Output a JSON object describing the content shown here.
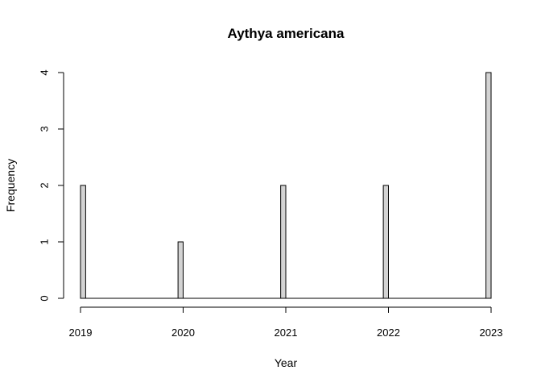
{
  "chart_data": {
    "type": "bar",
    "title": "Aythya americana",
    "xlabel": "Year",
    "ylabel": "Frequency",
    "x_ticks": [
      "2019",
      "2020",
      "2021",
      "2022",
      "2023"
    ],
    "y_ticks": [
      "0",
      "1",
      "2",
      "3",
      "4"
    ],
    "xlim": [
      2019,
      2023
    ],
    "ylim": [
      0,
      4
    ],
    "bin_width": 0.05,
    "bars": [
      {
        "start": 2019.0,
        "end": 2019.05,
        "count": 2
      },
      {
        "start": 2019.95,
        "end": 2020.0,
        "count": 1
      },
      {
        "start": 2020.95,
        "end": 2021.0,
        "count": 2
      },
      {
        "start": 2021.95,
        "end": 2022.0,
        "count": 2
      },
      {
        "start": 2022.95,
        "end": 2023.0,
        "count": 4
      }
    ],
    "bar_fill": "#d3d3d3",
    "bar_stroke": "#000000",
    "grid": false,
    "legend": "none"
  }
}
